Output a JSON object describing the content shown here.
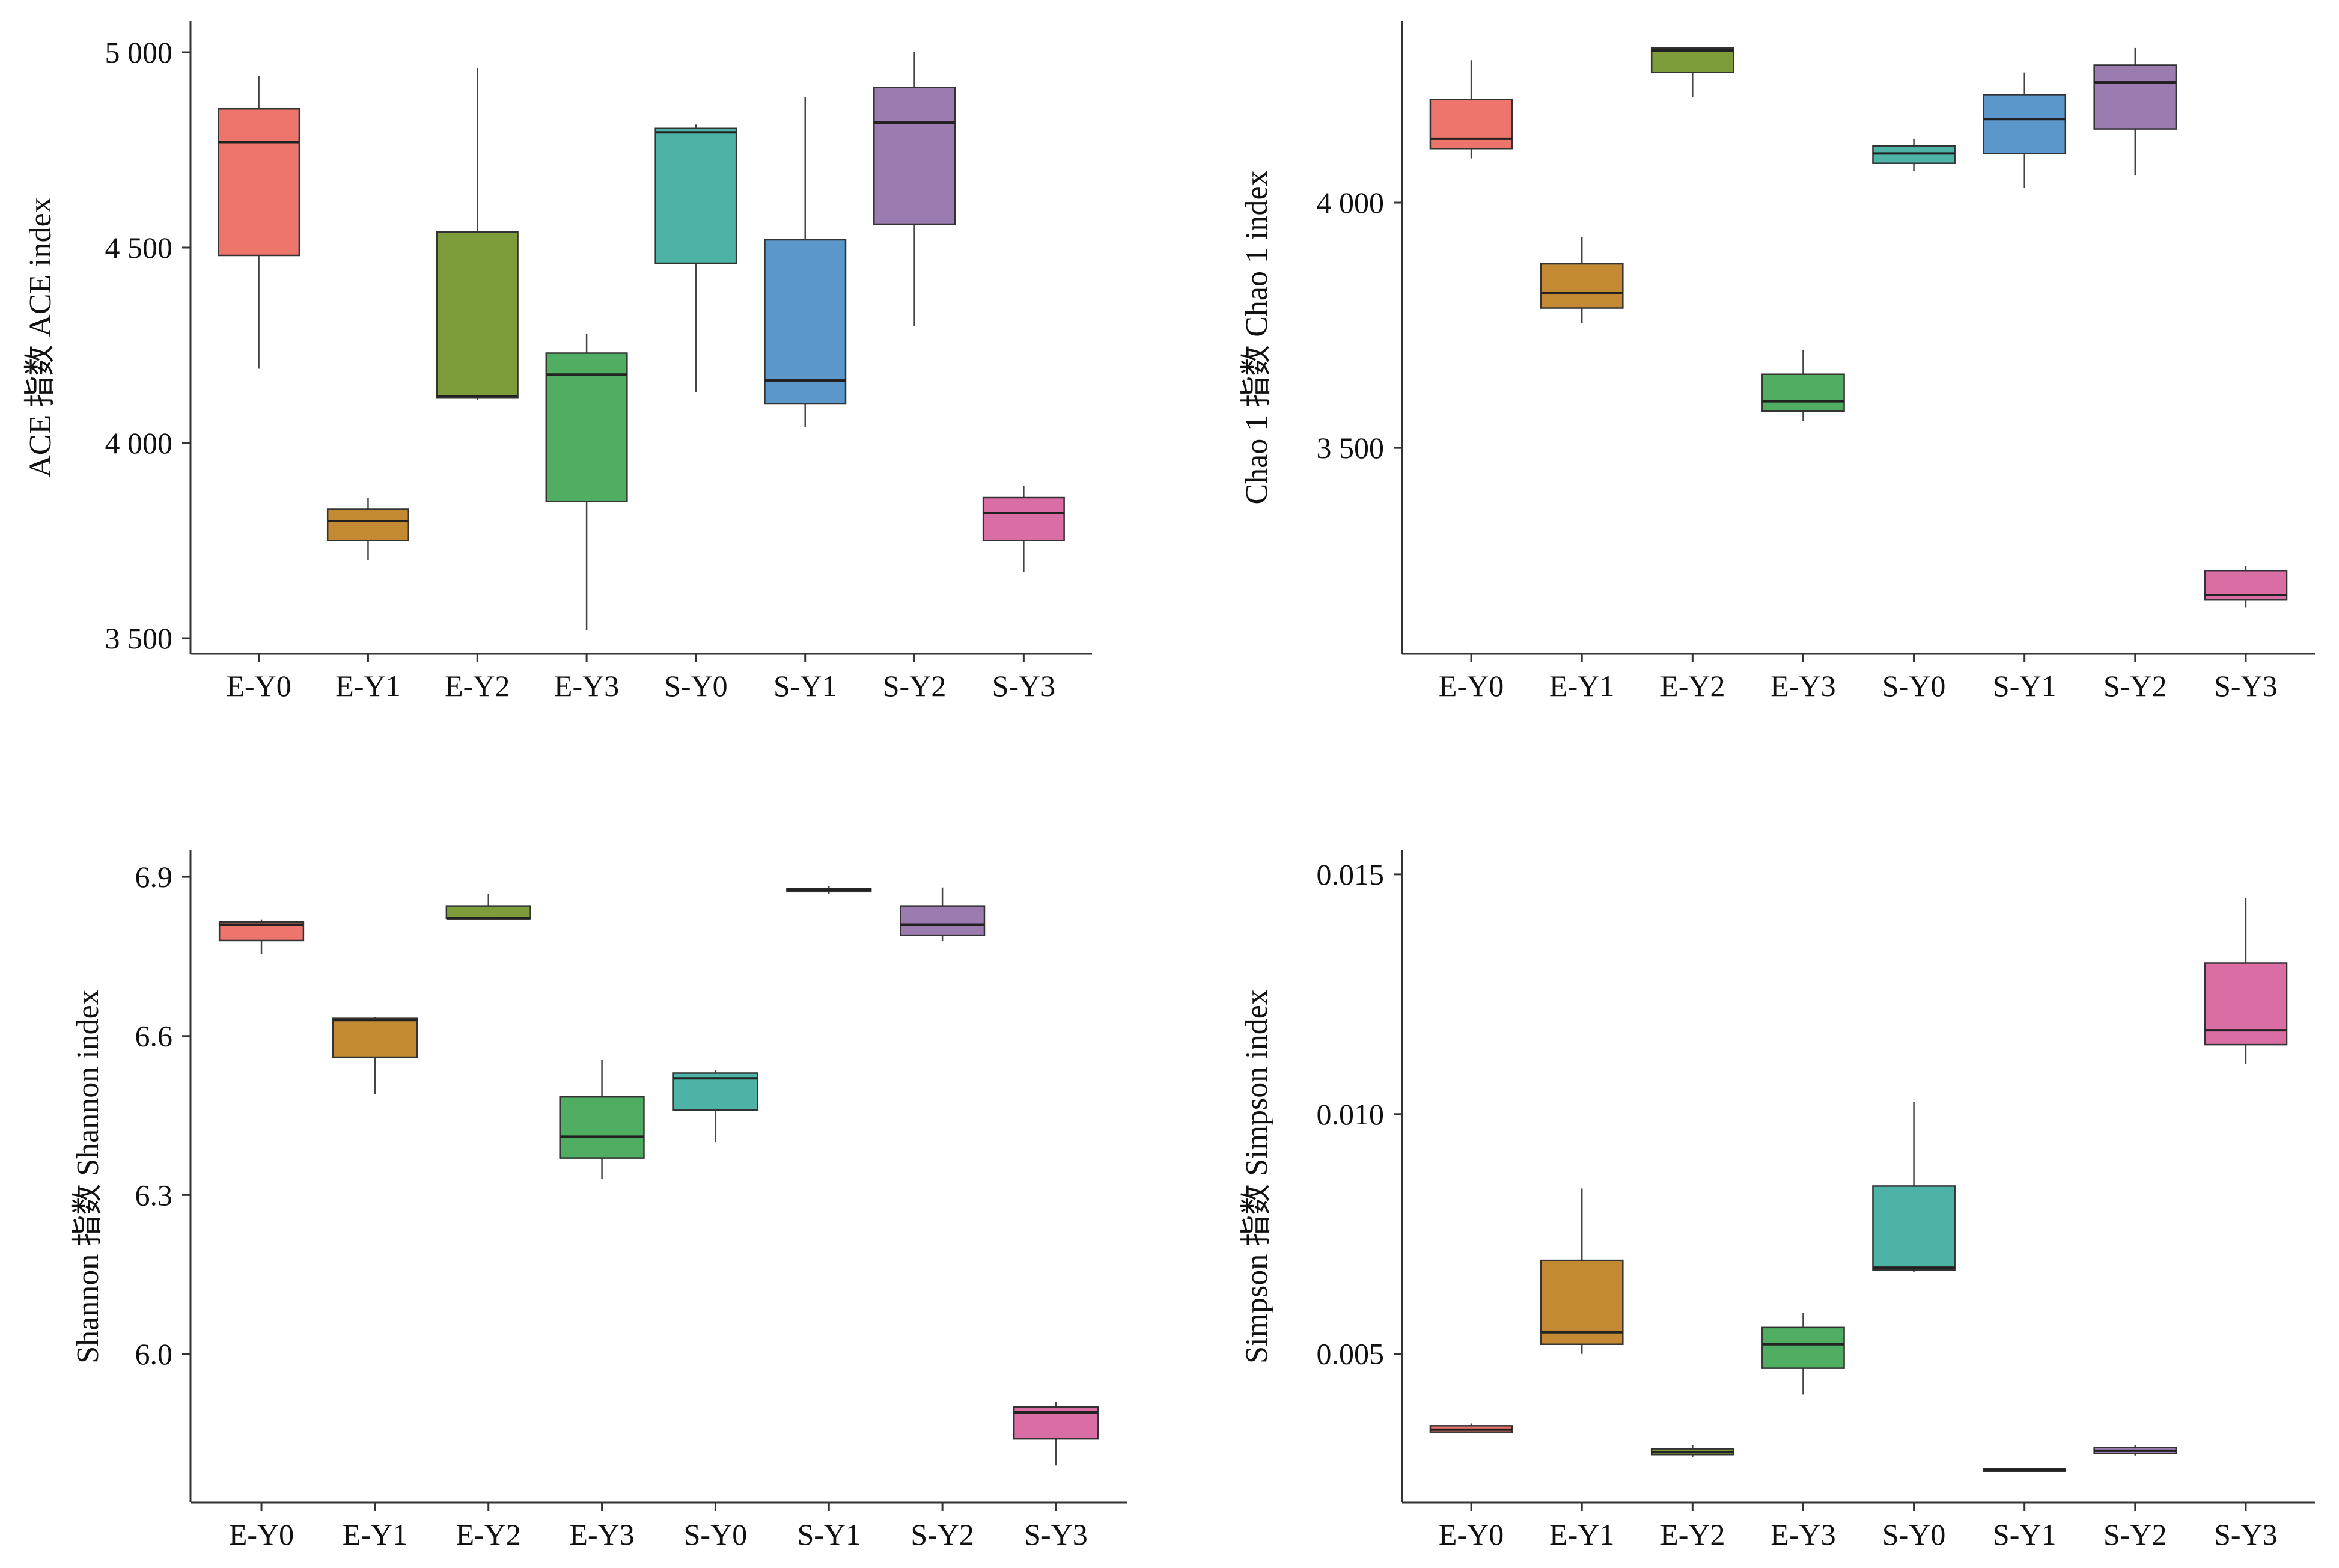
{
  "chart_data": [
    {
      "type": "box",
      "ylabel": "ACE 指数 ACE index",
      "ylim": [
        3460,
        5080
      ],
      "yticks": [
        3500,
        4000,
        4500,
        5000
      ],
      "ytick_labels": [
        "3 500",
        "4 000",
        "4 500",
        "5 000"
      ],
      "categories": [
        "E-Y0",
        "E-Y1",
        "E-Y2",
        "E-Y3",
        "S-Y0",
        "S-Y1",
        "S-Y2",
        "S-Y3"
      ],
      "boxes": [
        {
          "min": 4190,
          "q1": 4480,
          "median": 4770,
          "q3": 4855,
          "max": 4940
        },
        {
          "min": 3700,
          "q1": 3750,
          "median": 3800,
          "q3": 3830,
          "max": 3860
        },
        {
          "min": 4110,
          "q1": 4115,
          "median": 4120,
          "q3": 4540,
          "max": 4960
        },
        {
          "min": 3520,
          "q1": 3850,
          "median": 4175,
          "q3": 4230,
          "max": 4280
        },
        {
          "min": 4130,
          "q1": 4460,
          "median": 4795,
          "q3": 4805,
          "max": 4815
        },
        {
          "min": 4040,
          "q1": 4100,
          "median": 4160,
          "q3": 4520,
          "max": 4885
        },
        {
          "min": 4300,
          "q1": 4560,
          "median": 4820,
          "q3": 4910,
          "max": 5000
        },
        {
          "min": 3670,
          "q1": 3750,
          "median": 3820,
          "q3": 3860,
          "max": 3890
        }
      ]
    },
    {
      "type": "box",
      "ylabel": "Chao 1 指数 Chao 1 index",
      "ylim": [
        3080,
        4370
      ],
      "yticks": [
        3500,
        4000
      ],
      "ytick_labels": [
        "3 500",
        "4 000"
      ],
      "categories": [
        "E-Y0",
        "E-Y1",
        "E-Y2",
        "E-Y3",
        "S-Y0",
        "S-Y1",
        "S-Y2",
        "S-Y3"
      ],
      "boxes": [
        {
          "min": 4090,
          "q1": 4110,
          "median": 4130,
          "q3": 4210,
          "max": 4290
        },
        {
          "min": 3755,
          "q1": 3785,
          "median": 3815,
          "q3": 3875,
          "max": 3930
        },
        {
          "min": 4215,
          "q1": 4265,
          "median": 4310,
          "q3": 4315,
          "max": 4315
        },
        {
          "min": 3555,
          "q1": 3575,
          "median": 3595,
          "q3": 3650,
          "max": 3700
        },
        {
          "min": 4065,
          "q1": 4080,
          "median": 4100,
          "q3": 4115,
          "max": 4130
        },
        {
          "min": 4030,
          "q1": 4100,
          "median": 4170,
          "q3": 4220,
          "max": 4265
        },
        {
          "min": 4055,
          "q1": 4150,
          "median": 4245,
          "q3": 4280,
          "max": 4315
        },
        {
          "min": 3175,
          "q1": 3190,
          "median": 3200,
          "q3": 3250,
          "max": 3260
        }
      ]
    },
    {
      "type": "box",
      "ylabel": "Shannon 指数 Shannon index",
      "ylim": [
        5.72,
        6.95
      ],
      "yticks": [
        6.0,
        6.3,
        6.6,
        6.9
      ],
      "ytick_labels": [
        "6.0",
        "6.3",
        "6.6",
        "6.9"
      ],
      "categories": [
        "E-Y0",
        "E-Y1",
        "E-Y2",
        "E-Y3",
        "S-Y0",
        "S-Y1",
        "S-Y2",
        "S-Y3"
      ],
      "boxes": [
        {
          "min": 6.755,
          "q1": 6.78,
          "median": 6.81,
          "q3": 6.815,
          "max": 6.82
        },
        {
          "min": 6.49,
          "q1": 6.56,
          "median": 6.63,
          "q3": 6.633,
          "max": 6.635
        },
        {
          "min": 6.82,
          "q1": 6.822,
          "median": 6.822,
          "q3": 6.845,
          "max": 6.868
        },
        {
          "min": 6.33,
          "q1": 6.37,
          "median": 6.41,
          "q3": 6.485,
          "max": 6.555
        },
        {
          "min": 6.4,
          "q1": 6.46,
          "median": 6.52,
          "q3": 6.53,
          "max": 6.535
        },
        {
          "min": 6.868,
          "q1": 6.872,
          "median": 6.876,
          "q3": 6.878,
          "max": 6.882
        },
        {
          "min": 6.78,
          "q1": 6.79,
          "median": 6.81,
          "q3": 6.845,
          "max": 6.88
        },
        {
          "min": 5.79,
          "q1": 5.84,
          "median": 5.89,
          "q3": 5.9,
          "max": 5.91
        }
      ]
    },
    {
      "type": "box",
      "ylabel": "Simpson 指数 Simpson index",
      "ylim": [
        0.0019,
        0.0155
      ],
      "yticks": [
        0.005,
        0.01,
        0.015
      ],
      "ytick_labels": [
        "0.005",
        "0.010",
        "0.015"
      ],
      "categories": [
        "E-Y0",
        "E-Y1",
        "E-Y2",
        "E-Y3",
        "S-Y0",
        "S-Y1",
        "S-Y2",
        "S-Y3"
      ],
      "boxes": [
        {
          "min": 0.00335,
          "q1": 0.00337,
          "median": 0.00342,
          "q3": 0.0035,
          "max": 0.00355
        },
        {
          "min": 0.005,
          "q1": 0.0052,
          "median": 0.00545,
          "q3": 0.00695,
          "max": 0.00845
        },
        {
          "min": 0.00285,
          "q1": 0.0029,
          "median": 0.00295,
          "q3": 0.00302,
          "max": 0.0031
        },
        {
          "min": 0.00415,
          "q1": 0.0047,
          "median": 0.0052,
          "q3": 0.00555,
          "max": 0.00585
        },
        {
          "min": 0.0067,
          "q1": 0.00675,
          "median": 0.0068,
          "q3": 0.0085,
          "max": 0.01025
        },
        {
          "min": 0.00255,
          "q1": 0.00257,
          "median": 0.00258,
          "q3": 0.0026,
          "max": 0.00262
        },
        {
          "min": 0.00288,
          "q1": 0.00292,
          "median": 0.00298,
          "q3": 0.00305,
          "max": 0.0031
        },
        {
          "min": 0.01105,
          "q1": 0.01145,
          "median": 0.01175,
          "q3": 0.01315,
          "max": 0.0145
        }
      ]
    }
  ],
  "colors": [
    "#ED756B",
    "#C48A33",
    "#7C9D3A",
    "#4FAE62",
    "#4DB3A7",
    "#5B97CB",
    "#9B7BB0",
    "#DA6DA4"
  ]
}
